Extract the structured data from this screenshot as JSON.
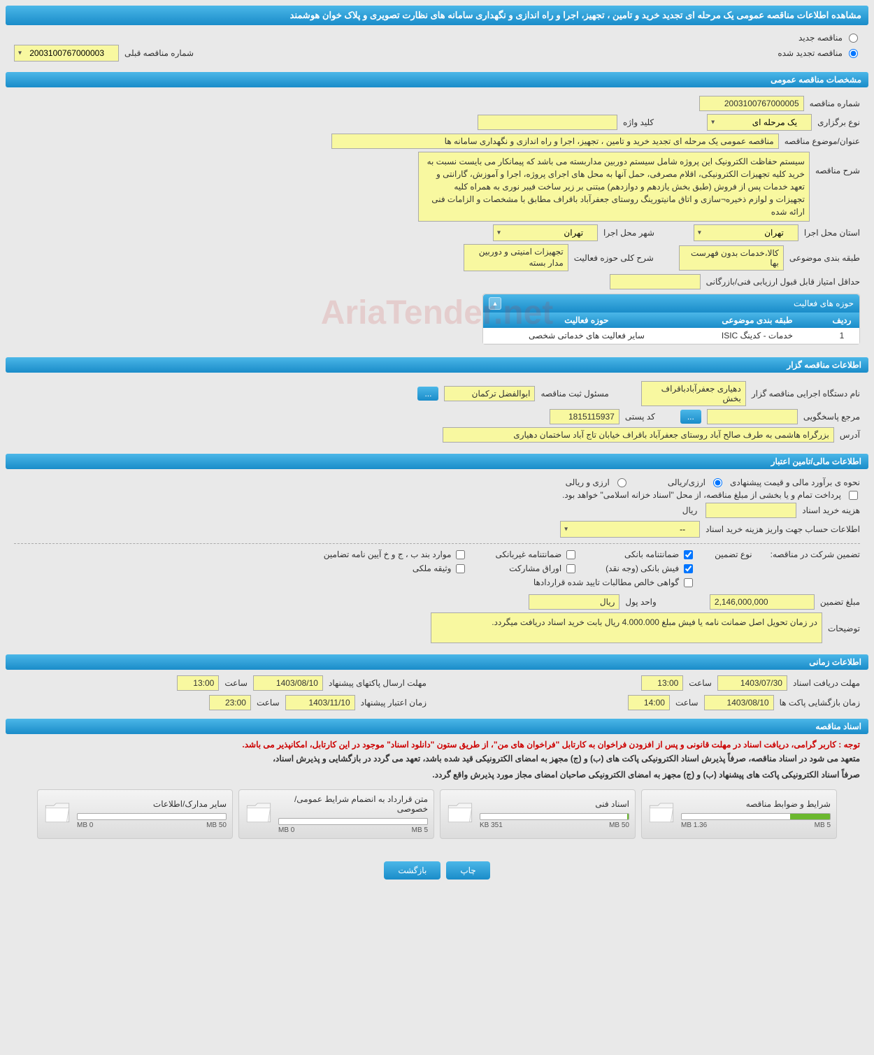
{
  "page_title": "مشاهده اطلاعات مناقصه عمومی یک مرحله ای تجدید خرید و تامین ، تجهیز، اجرا و راه اندازی و نگهداری سامانه های نظارت تصویری و پلاک خوان هوشمند",
  "radio_options": {
    "new_label": "مناقصه جدید",
    "renewed_label": "مناقصه تجدید شده"
  },
  "prev_tender": {
    "label": "شماره مناقصه قبلی",
    "value": "2003100767000003"
  },
  "sections": {
    "general": "مشخصات مناقصه عمومی",
    "organizer": "اطلاعات مناقصه گزار",
    "financial": "اطلاعات مالی/تامین اعتبار",
    "timing": "اطلاعات زمانی",
    "documents": "اسناد مناقصه"
  },
  "general": {
    "tender_no_label": "شماره مناقصه",
    "tender_no": "2003100767000005",
    "type_label": "نوع برگزاری",
    "type_value": "یک مرحله ای",
    "keyword_label": "کلید واژه",
    "keyword": "",
    "subject_label": "عنوان/موضوع مناقصه",
    "subject": "مناقصه عمومی یک مرحله ای  تجدید خرید و تامین ، تجهیز، اجرا و راه اندازی و نگهداری  سامانه ها",
    "description_label": "شرح مناقصه",
    "description": "سیستم حفاظت الکترونیک این پروژه شامل سیستم دوربین مداربسته می باشد که پیمانکار می بایست نسبت به خرید کلیه تجهیزات الکترونیکی، اقلام مصرفی، حمل آنها به محل های اجرای پروژه، اجرا و آموزش، گارانتی و تعهد خدمات پس از فروش (طبق بخش یازدهم و دوازدهم) مبتنی بر زیر ساخت فیبر نوری به همراه کلیه تجهیزات و لوازم ذخیره¬سازی و اتاق مانیتورینگ روستای جعفرآباد باقراف مطابق با مشخصات و الزامات فنی ارائه شده",
    "province_label": "استان محل اجرا",
    "province": "تهران",
    "city_label": "شهر محل اجرا",
    "city": "تهران",
    "category_label": "طبقه بندی موضوعی",
    "category": "کالا،خدمات بدون فهرست بها",
    "category_desc_label": "شرح کلی حوزه فعالیت",
    "category_desc": "تجهیزات امنیتی و دوربین مدار بسته",
    "min_score_label": "حداقل امتیاز قابل قبول ارزیابی فنی/بازرگانی",
    "min_score": ""
  },
  "activity_panel": {
    "title": "حوزه های فعالیت",
    "col_row": "ردیف",
    "col_category": "طبقه بندی موضوعی",
    "col_activity": "حوزه فعالیت",
    "rows": [
      {
        "idx": "1",
        "category": "خدمات - کدینگ ISIC",
        "activity": "سایر فعالیت های خدماتی شخصی"
      }
    ]
  },
  "organizer": {
    "org_label": "نام دستگاه اجرایی مناقصه گزار",
    "org": "دهیاری جعفرآبادباقراف بخش",
    "registrar_label": "مسئول ثبت مناقصه",
    "registrar": "ابوالفضل ترکمان",
    "contact_label": "مرجع پاسخگویی",
    "contact": "",
    "postal_label": "کد پستی",
    "postal": "1815115937",
    "address_label": "آدرس",
    "address": "بزرگراه هاشمی به طرف صالح آباد روستای جعفرآباد باقراف خیابان تاج آباد ساختمان دهیاری"
  },
  "financial": {
    "estimate_label": "نحوه ی برآورد مالی و قیمت پیشنهادی",
    "opt_rial": "ارزی/ریالی",
    "opt_currency": "ارزی و ریالی",
    "payment_note": "پرداخت تمام و یا بخشی از مبلغ مناقصه، از محل \"اسناد خزانه اسلامی\" خواهد بود.",
    "buy_cost_label": "هزینه خرید اسناد",
    "buy_cost": "",
    "buy_cost_unit": "ریال",
    "account_label": "اطلاعات حساب جهت واریز هزینه خرید اسناد",
    "account_value": "--",
    "guarantee_label": "تضمین شرکت در مناقصه:",
    "guarantee_type_label": "نوع تضمین",
    "guarantees": {
      "bank": "ضمانتنامه بانکی",
      "nonbank": "ضمانتنامه غیربانکی",
      "items_b": "موارد بند ب ، ج و خ آیین نامه تضامین",
      "receipt": "فیش بانکی (وجه نقد)",
      "bonds": "اوراق مشارکت",
      "property": "وثیقه ملکی",
      "cert": "گواهی خالص مطالبات تایید شده قراردادها"
    },
    "amount_label": "مبلغ تضمین",
    "amount": "2,146,000,000",
    "unit_label": "واحد پول",
    "unit": "ریال",
    "note_label": "توضیحات",
    "note": "در زمان تحویل اصل ضمانت نامه یا فیش مبلغ 4.000.000 ریال بابت خرید اسناد دریافت میگردد."
  },
  "timing": {
    "receive_label": "مهلت دریافت اسناد",
    "receive_date": "1403/07/30",
    "send_label": "مهلت ارسال پاکتهای پیشنهاد",
    "send_date": "1403/08/10",
    "open_label": "زمان بازگشایی پاکت ها",
    "open_date": "1403/08/10",
    "validity_label": "زمان اعتبار پیشنهاد",
    "validity_date": "1403/11/10",
    "time_label": "ساعت",
    "receive_time": "13:00",
    "send_time": "13:00",
    "open_time": "14:00",
    "validity_time": "23:00"
  },
  "docs_notice": {
    "red": "توجه : کاربر گرامی، دریافت اسناد در مهلت قانونی و پس از افزودن فراخوان به کارتابل \"فراخوان های من\"، از طریق ستون \"دانلود اسناد\" موجود در این کارتابل، امکانپذیر می باشد.",
    "line1": "متعهد می شود در اسناد مناقصه، صرفاً پذیرش اسناد الکترونیکی پاکت های (ب) و (ج) مجهز به امضای الکترونیکی قید شده باشد، تعهد می گردد در بازگشایی و پذیرش اسناد،",
    "line2": "صرفاً اسناد الکترونیکی پاکت های پیشنهاد (ب) و (ج) مجهز به امضای الکترونیکی صاحبان امضای مجاز مورد پذیرش واقع گردد."
  },
  "documents": [
    {
      "title": "شرایط و ضوابط مناقصه",
      "used": "1.36 MB",
      "total": "5 MB",
      "fill_pct": 27
    },
    {
      "title": "اسناد فنی",
      "used": "351 KB",
      "total": "50 MB",
      "fill_pct": 1
    },
    {
      "title": "متن قرارداد به انضمام شرایط عمومی/خصوصی",
      "used": "0 MB",
      "total": "5 MB",
      "fill_pct": 0
    },
    {
      "title": "سایر مدارک/اطلاعات",
      "used": "0 MB",
      "total": "50 MB",
      "fill_pct": 0
    }
  ],
  "buttons": {
    "print": "چاپ",
    "back": "بازگشت",
    "ellipsis": "..."
  },
  "watermark": "AriaTender.net"
}
